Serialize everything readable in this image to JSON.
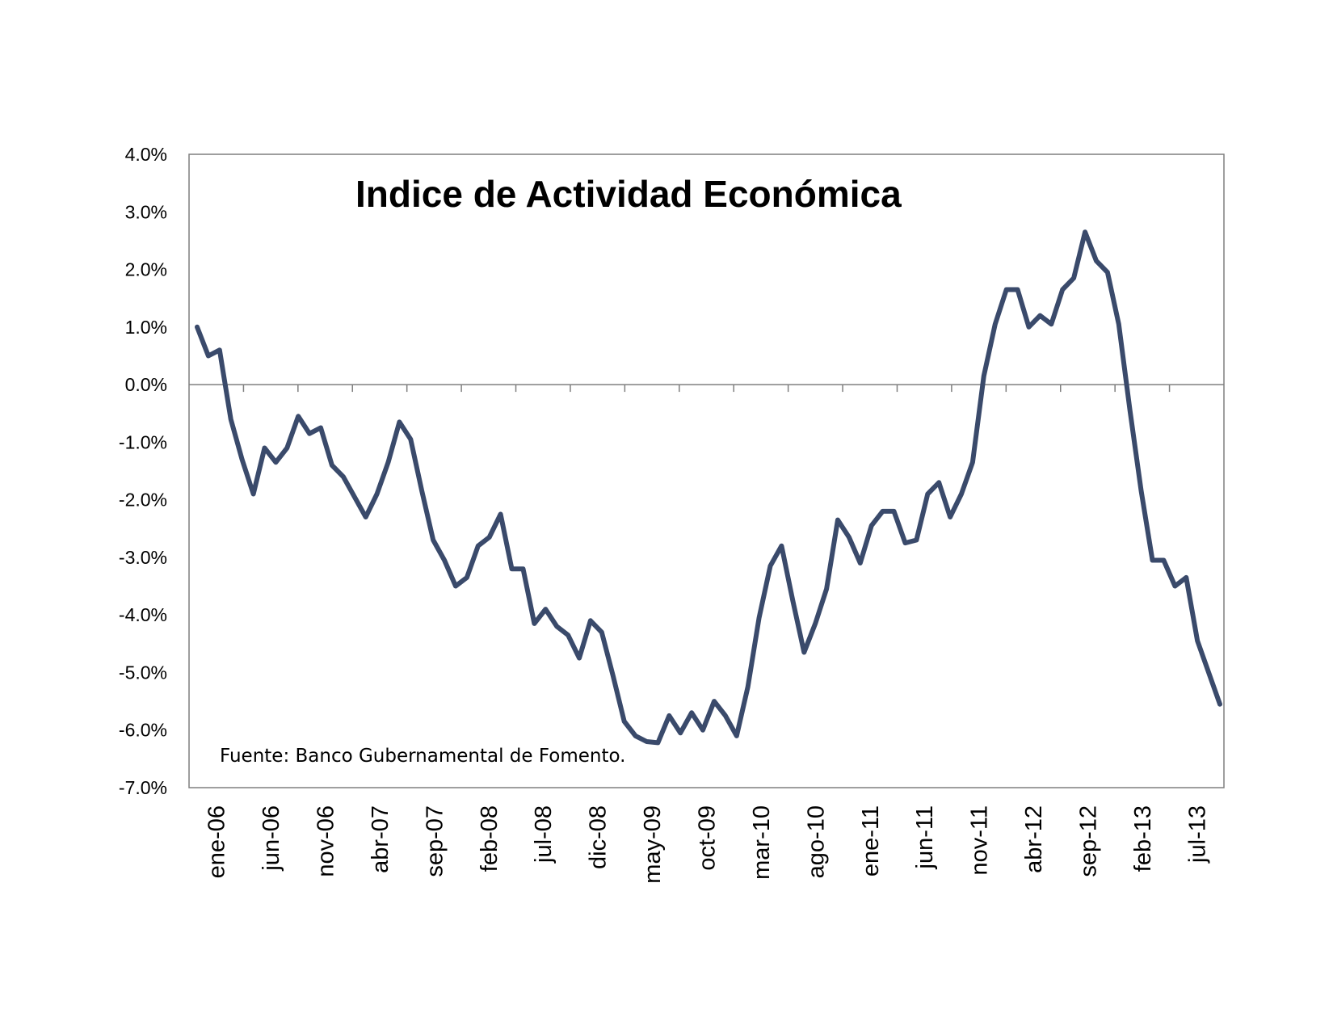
{
  "chart_data": {
    "type": "line",
    "title": "Indice de Actividad Económica",
    "annotation": "Fuente: Banco Gubernamental de Fomento.",
    "xlabel": "",
    "ylabel": "",
    "ylim": [
      -7.0,
      4.0
    ],
    "y_ticks": [
      "4.0%",
      "3.0%",
      "2.0%",
      "1.0%",
      "0.0%",
      "-1.0%",
      "-2.0%",
      "-3.0%",
      "-4.0%",
      "-5.0%",
      "-6.0%",
      "-7.0%"
    ],
    "y_tick_values": [
      4,
      3,
      2,
      1,
      0,
      -1,
      -2,
      -3,
      -4,
      -5,
      -6,
      -7
    ],
    "x_tick_labels": [
      "ene-06",
      "jun-06",
      "nov-06",
      "abr-07",
      "sep-07",
      "feb-08",
      "jul-08",
      "dic-08",
      "may-09",
      "oct-09",
      "mar-10",
      "ago-10",
      "ene-11",
      "jun-11",
      "nov-11",
      "abr-12",
      "sep-12",
      "feb-13",
      "jul-13"
    ],
    "x_range": [
      "ene-06",
      "jul-13"
    ],
    "line_color": "#3a4a6b",
    "series": [
      {
        "values": [
          1.0,
          0.5,
          0.6,
          -0.6,
          -1.3,
          -1.9,
          -1.1,
          -1.35,
          -1.1,
          -0.55,
          -0.85,
          -0.75,
          -1.4,
          -1.6,
          -1.95,
          -2.3,
          -1.9,
          -1.35,
          -0.65,
          -0.95,
          -1.85,
          -2.7,
          -3.05,
          -3.5,
          -3.35,
          -2.8,
          -2.65,
          -2.25,
          -3.2,
          -3.2,
          -4.15,
          -3.9,
          -4.2,
          -4.35,
          -4.75,
          -4.1,
          -4.3,
          -5.05,
          -5.85,
          -6.1,
          -6.2,
          -6.22,
          -5.75,
          -6.05,
          -5.7,
          -6.0,
          -5.5,
          -5.75,
          -6.1,
          -5.25,
          -4.05,
          -3.15,
          -2.8,
          -3.75,
          -4.65,
          -4.15,
          -3.55,
          -2.35,
          -2.65,
          -3.1,
          -2.45,
          -2.2,
          -2.2,
          -2.75,
          -2.7,
          -1.9,
          -1.7,
          -2.3,
          -1.9,
          -1.35,
          0.15,
          1.05,
          1.65,
          1.65,
          1.0,
          1.2,
          1.05,
          1.65,
          1.85,
          2.65,
          2.15,
          1.95,
          1.05,
          -0.45,
          -1.85,
          -3.05,
          -3.05,
          -3.5,
          -3.35,
          -4.45,
          -5.0,
          -5.55
        ]
      }
    ],
    "grid": false,
    "legend": "none"
  }
}
